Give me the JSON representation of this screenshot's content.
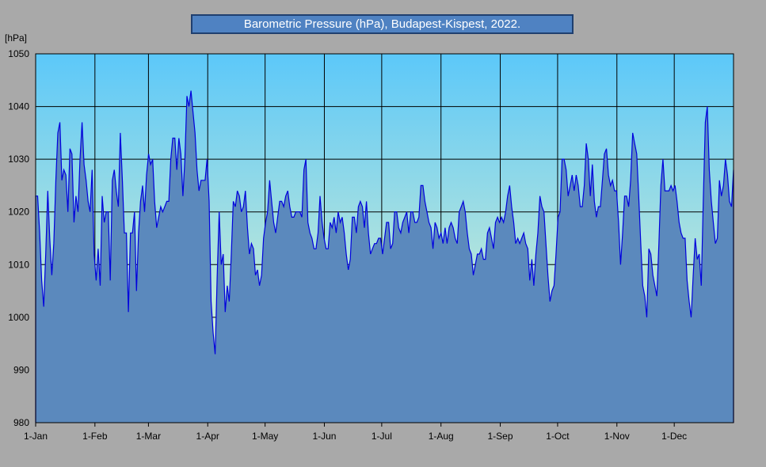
{
  "chart_data": {
    "type": "area",
    "title": "Barometric Pressure (hPa), Budapest-Kispest, 2022.",
    "ylabel": "[hPa]",
    "xlabel": "",
    "ylim": [
      980,
      1050
    ],
    "yticks": [
      980,
      990,
      1000,
      1010,
      1020,
      1030,
      1040,
      1050
    ],
    "xlim": [
      1,
      366
    ],
    "xticks": [
      {
        "day": 1,
        "label": "1-Jan"
      },
      {
        "day": 32,
        "label": "1-Feb"
      },
      {
        "day": 60,
        "label": "1-Mar"
      },
      {
        "day": 91,
        "label": "1-Apr"
      },
      {
        "day": 121,
        "label": "1-May"
      },
      {
        "day": 152,
        "label": "1-Jun"
      },
      {
        "day": 182,
        "label": "1-Jul"
      },
      {
        "day": 213,
        "label": "1-Aug"
      },
      {
        "day": 244,
        "label": "1-Sep"
      },
      {
        "day": 274,
        "label": "1-Oct"
      },
      {
        "day": 305,
        "label": "1-Nov"
      },
      {
        "day": 335,
        "label": "1-Dec"
      }
    ],
    "grid": true,
    "colors": {
      "line": "#0000dd",
      "fill": "#5b89bd",
      "bg_top": "#5cc8f9",
      "bg_bottom": "#f2f8c8"
    },
    "series": [
      {
        "values": [
          1023,
          1023,
          1016,
          1007,
          1002,
          1012,
          1024,
          1015,
          1008,
          1014,
          1026,
          1035,
          1037,
          1026,
          1028,
          1027,
          1020,
          1032,
          1031,
          1018,
          1023,
          1020,
          1030,
          1037,
          1029,
          1026,
          1022,
          1020,
          1028,
          1012,
          1007,
          1013,
          1006,
          1023,
          1018,
          1020,
          1020,
          1007,
          1026,
          1028,
          1024,
          1021,
          1035,
          1026,
          1016,
          1016,
          1001,
          1016,
          1016,
          1020,
          1005,
          1016,
          1022,
          1025,
          1020,
          1027,
          1031,
          1029,
          1030,
          1022,
          1017,
          1019,
          1021,
          1020,
          1021,
          1022,
          1022,
          1030,
          1034,
          1034,
          1028,
          1034,
          1031,
          1023,
          1030,
          1042,
          1040,
          1043,
          1039,
          1035,
          1028,
          1024,
          1026,
          1026,
          1026,
          1030,
          1022,
          1003,
          997,
          993,
          1008,
          1020,
          1010,
          1012,
          1001,
          1006,
          1003,
          1012,
          1022,
          1021,
          1024,
          1023,
          1020,
          1021,
          1024,
          1017,
          1012,
          1014,
          1013,
          1008,
          1009,
          1006,
          1008,
          1015,
          1018,
          1020,
          1026,
          1022,
          1018,
          1016,
          1019,
          1022,
          1022,
          1021,
          1023,
          1024,
          1021,
          1019,
          1019,
          1020,
          1020,
          1020,
          1019,
          1028,
          1030,
          1018,
          1016,
          1015,
          1013,
          1013,
          1016,
          1023,
          1018,
          1015,
          1013,
          1013,
          1018,
          1017,
          1019,
          1016,
          1020,
          1018,
          1019,
          1016,
          1012,
          1009,
          1011,
          1019,
          1019,
          1016,
          1021,
          1022,
          1021,
          1017,
          1022,
          1016,
          1012,
          1013,
          1014,
          1014,
          1015,
          1015,
          1012,
          1015,
          1018,
          1018,
          1013,
          1014,
          1020,
          1020,
          1017,
          1016,
          1018,
          1019,
          1020,
          1016,
          1020,
          1020,
          1018,
          1018,
          1019,
          1025,
          1025,
          1022,
          1020,
          1018,
          1017,
          1013,
          1018,
          1017,
          1015,
          1016,
          1014,
          1017,
          1014,
          1017,
          1018,
          1017,
          1015,
          1014,
          1020,
          1021,
          1022,
          1020,
          1016,
          1013,
          1012,
          1008,
          1010,
          1012,
          1012,
          1013,
          1011,
          1011,
          1016,
          1017,
          1015,
          1013,
          1018,
          1019,
          1018,
          1019,
          1018,
          1020,
          1023,
          1025,
          1021,
          1018,
          1014,
          1015,
          1014,
          1015,
          1016,
          1014,
          1013,
          1007,
          1011,
          1006,
          1012,
          1016,
          1023,
          1021,
          1020,
          1014,
          1008,
          1003,
          1005,
          1006,
          1012,
          1019,
          1020,
          1030,
          1030,
          1028,
          1023,
          1025,
          1027,
          1024,
          1027,
          1025,
          1021,
          1021,
          1025,
          1033,
          1030,
          1023,
          1029,
          1022,
          1019,
          1021,
          1021,
          1026,
          1031,
          1032,
          1027,
          1025,
          1026,
          1024,
          1024,
          1018,
          1010,
          1016,
          1023,
          1023,
          1021,
          1026,
          1035,
          1033,
          1031,
          1023,
          1014,
          1006,
          1004,
          1000,
          1013,
          1012,
          1008,
          1006,
          1004,
          1014,
          1025,
          1030,
          1024,
          1024,
          1024,
          1025,
          1024,
          1025,
          1022,
          1018,
          1016,
          1015,
          1015,
          1007,
          1003,
          1000,
          1008,
          1015,
          1011,
          1012,
          1006,
          1022,
          1037,
          1040,
          1028,
          1022,
          1018,
          1014,
          1015,
          1026,
          1023,
          1025,
          1030,
          1027,
          1022,
          1021,
          1028
        ]
      }
    ]
  }
}
